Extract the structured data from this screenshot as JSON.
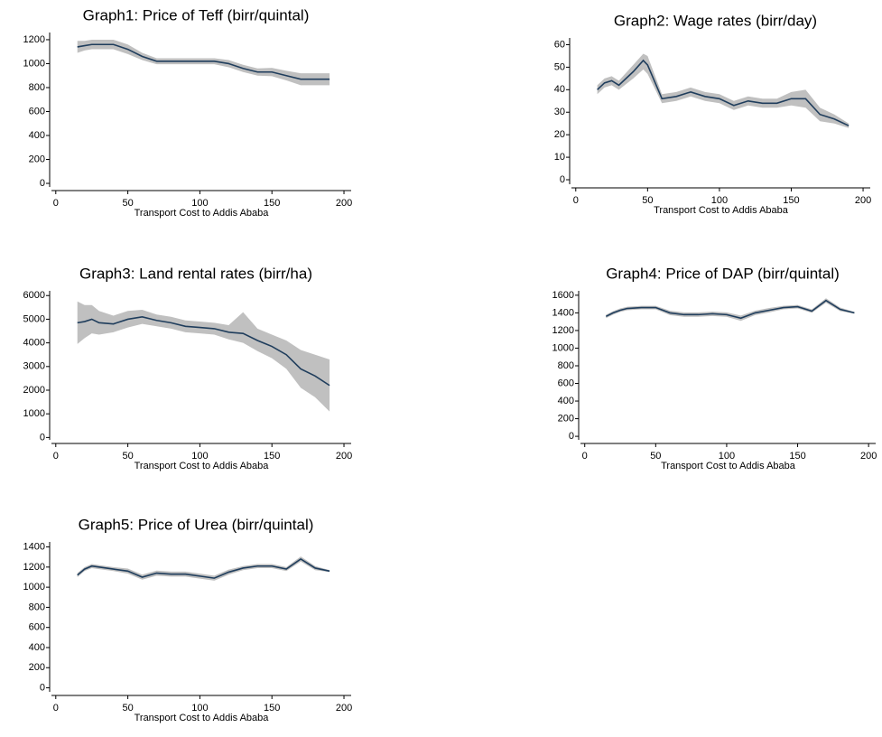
{
  "chart_data": [
    {
      "type": "line",
      "title": "Graph1: Price of Teff (birr/quintal)",
      "xlabel": "Transport Cost to Addis Ababa",
      "x": [
        15,
        20,
        25,
        30,
        40,
        50,
        60,
        70,
        80,
        90,
        100,
        110,
        120,
        130,
        140,
        150,
        160,
        170,
        180,
        190
      ],
      "series": [
        {
          "color": "#1f3d5c",
          "values": [
            1140,
            1150,
            1160,
            1160,
            1160,
            1120,
            1060,
            1020,
            1020,
            1020,
            1020,
            1020,
            1000,
            960,
            930,
            930,
            900,
            870,
            870,
            870
          ]
        }
      ],
      "band": {
        "color": "#c0c0c0",
        "lower": [
          1090,
          1110,
          1120,
          1120,
          1120,
          1080,
          1030,
          995,
          995,
          995,
          995,
          995,
          970,
          930,
          900,
          895,
          860,
          820,
          820,
          820
        ],
        "upper": [
          1190,
          1190,
          1200,
          1200,
          1200,
          1160,
          1090,
          1045,
          1045,
          1045,
          1045,
          1045,
          1030,
          990,
          960,
          965,
          940,
          920,
          920,
          920
        ]
      },
      "xlim": [
        -3,
        205
      ],
      "xticks": [
        0,
        50,
        100,
        150,
        200
      ],
      "ylim": [
        -30,
        1260
      ],
      "yticks": [
        0,
        200,
        400,
        600,
        800,
        1000,
        1200
      ]
    },
    {
      "type": "line",
      "title": "Graph2: Wage rates (birr/day)",
      "xlabel": "Transport Cost to Addis Ababa",
      "x": [
        15,
        20,
        25,
        30,
        40,
        47,
        50,
        60,
        70,
        80,
        90,
        100,
        110,
        120,
        130,
        140,
        150,
        160,
        170,
        180,
        190
      ],
      "series": [
        {
          "color": "#1f3d5c",
          "values": [
            40,
            43,
            44,
            42,
            48,
            53,
            51,
            36,
            37,
            39,
            37,
            36,
            33,
            35,
            34,
            34,
            36,
            36,
            29,
            27,
            24
          ]
        }
      ],
      "band": {
        "color": "#c0c0c0",
        "lower": [
          38,
          41,
          42,
          40,
          45,
          49,
          47,
          34,
          35,
          37,
          35,
          34,
          31,
          33,
          32,
          32,
          33,
          32,
          26,
          25,
          23
        ],
        "upper": [
          42,
          45,
          46,
          44,
          51,
          56,
          55,
          38,
          39,
          41,
          39,
          38,
          35,
          37,
          36,
          36,
          39,
          40,
          32,
          29,
          25
        ]
      },
      "xlim": [
        -3,
        205
      ],
      "xticks": [
        0,
        50,
        100,
        150,
        200
      ],
      "ylim": [
        -2,
        63
      ],
      "yticks": [
        0,
        10,
        20,
        30,
        40,
        50,
        60
      ]
    },
    {
      "type": "line",
      "title": "Graph3: Land rental rates (birr/ha)",
      "xlabel": "Transport Cost to Addis Ababa",
      "x": [
        15,
        20,
        25,
        30,
        40,
        50,
        60,
        70,
        80,
        90,
        100,
        110,
        120,
        130,
        140,
        150,
        160,
        170,
        180,
        190
      ],
      "series": [
        {
          "color": "#1f3d5c",
          "values": [
            4850,
            4900,
            5000,
            4850,
            4800,
            5000,
            5100,
            4950,
            4850,
            4700,
            4650,
            4600,
            4450,
            4400,
            4100,
            3850,
            3500,
            2900,
            2600,
            2200
          ]
        }
      ],
      "band": {
        "color": "#c0c0c0",
        "lower": [
          3950,
          4200,
          4400,
          4350,
          4450,
          4650,
          4800,
          4700,
          4600,
          4450,
          4400,
          4350,
          4150,
          4000,
          3650,
          3350,
          2900,
          2100,
          1700,
          1100
        ],
        "upper": [
          5750,
          5600,
          5600,
          5350,
          5150,
          5350,
          5400,
          5200,
          5100,
          4950,
          4900,
          4850,
          4750,
          5300,
          4600,
          4350,
          4100,
          3700,
          3500,
          3300
        ]
      },
      "xlim": [
        -3,
        205
      ],
      "xticks": [
        0,
        50,
        100,
        150,
        200
      ],
      "ylim": [
        -100,
        6200
      ],
      "yticks": [
        0,
        1000,
        2000,
        3000,
        4000,
        5000,
        6000
      ]
    },
    {
      "type": "line",
      "title": "Graph4: Price of DAP (birr/quintal)",
      "xlabel": "Transport Cost to Addis Ababa",
      "x": [
        15,
        20,
        25,
        30,
        40,
        50,
        60,
        70,
        80,
        90,
        100,
        110,
        120,
        130,
        140,
        150,
        160,
        170,
        180,
        190
      ],
      "series": [
        {
          "color": "#1f3d5c",
          "values": [
            1360,
            1400,
            1430,
            1450,
            1460,
            1460,
            1400,
            1380,
            1380,
            1390,
            1380,
            1340,
            1400,
            1430,
            1460,
            1470,
            1420,
            1540,
            1440,
            1400
          ]
        }
      ],
      "band": {
        "color": "#c0c0c0",
        "lower": [
          1340,
          1380,
          1410,
          1430,
          1440,
          1440,
          1375,
          1355,
          1355,
          1365,
          1355,
          1310,
          1375,
          1405,
          1440,
          1450,
          1400,
          1515,
          1420,
          1390
        ],
        "upper": [
          1380,
          1420,
          1450,
          1470,
          1480,
          1480,
          1425,
          1405,
          1405,
          1415,
          1405,
          1370,
          1425,
          1455,
          1480,
          1490,
          1440,
          1565,
          1460,
          1410
        ]
      },
      "xlim": [
        -3,
        205
      ],
      "xticks": [
        0,
        50,
        100,
        150,
        200
      ],
      "ylim": [
        -40,
        1650
      ],
      "yticks": [
        0,
        200,
        400,
        600,
        800,
        1000,
        1200,
        1400,
        1600
      ]
    },
    {
      "type": "line",
      "title": "Graph5: Price of Urea (birr/quintal)",
      "xlabel": "Transport Cost to Addis Ababa",
      "x": [
        15,
        20,
        25,
        30,
        40,
        50,
        60,
        70,
        80,
        90,
        100,
        110,
        120,
        130,
        140,
        150,
        160,
        170,
        180,
        190
      ],
      "series": [
        {
          "color": "#1f3d5c",
          "values": [
            1120,
            1180,
            1210,
            1200,
            1180,
            1160,
            1100,
            1140,
            1130,
            1130,
            1110,
            1090,
            1150,
            1190,
            1210,
            1210,
            1180,
            1280,
            1190,
            1160
          ]
        }
      ],
      "band": {
        "color": "#c0c0c0",
        "lower": [
          1100,
          1160,
          1190,
          1180,
          1160,
          1135,
          1075,
          1115,
          1105,
          1105,
          1085,
          1065,
          1125,
          1170,
          1190,
          1190,
          1160,
          1255,
          1170,
          1150
        ],
        "upper": [
          1140,
          1200,
          1230,
          1220,
          1200,
          1185,
          1125,
          1165,
          1155,
          1155,
          1135,
          1115,
          1175,
          1210,
          1230,
          1230,
          1200,
          1305,
          1210,
          1170
        ]
      },
      "xlim": [
        -3,
        205
      ],
      "xticks": [
        0,
        50,
        100,
        150,
        200
      ],
      "ylim": [
        -40,
        1450
      ],
      "yticks": [
        0,
        200,
        400,
        600,
        800,
        1000,
        1200,
        1400
      ]
    }
  ]
}
